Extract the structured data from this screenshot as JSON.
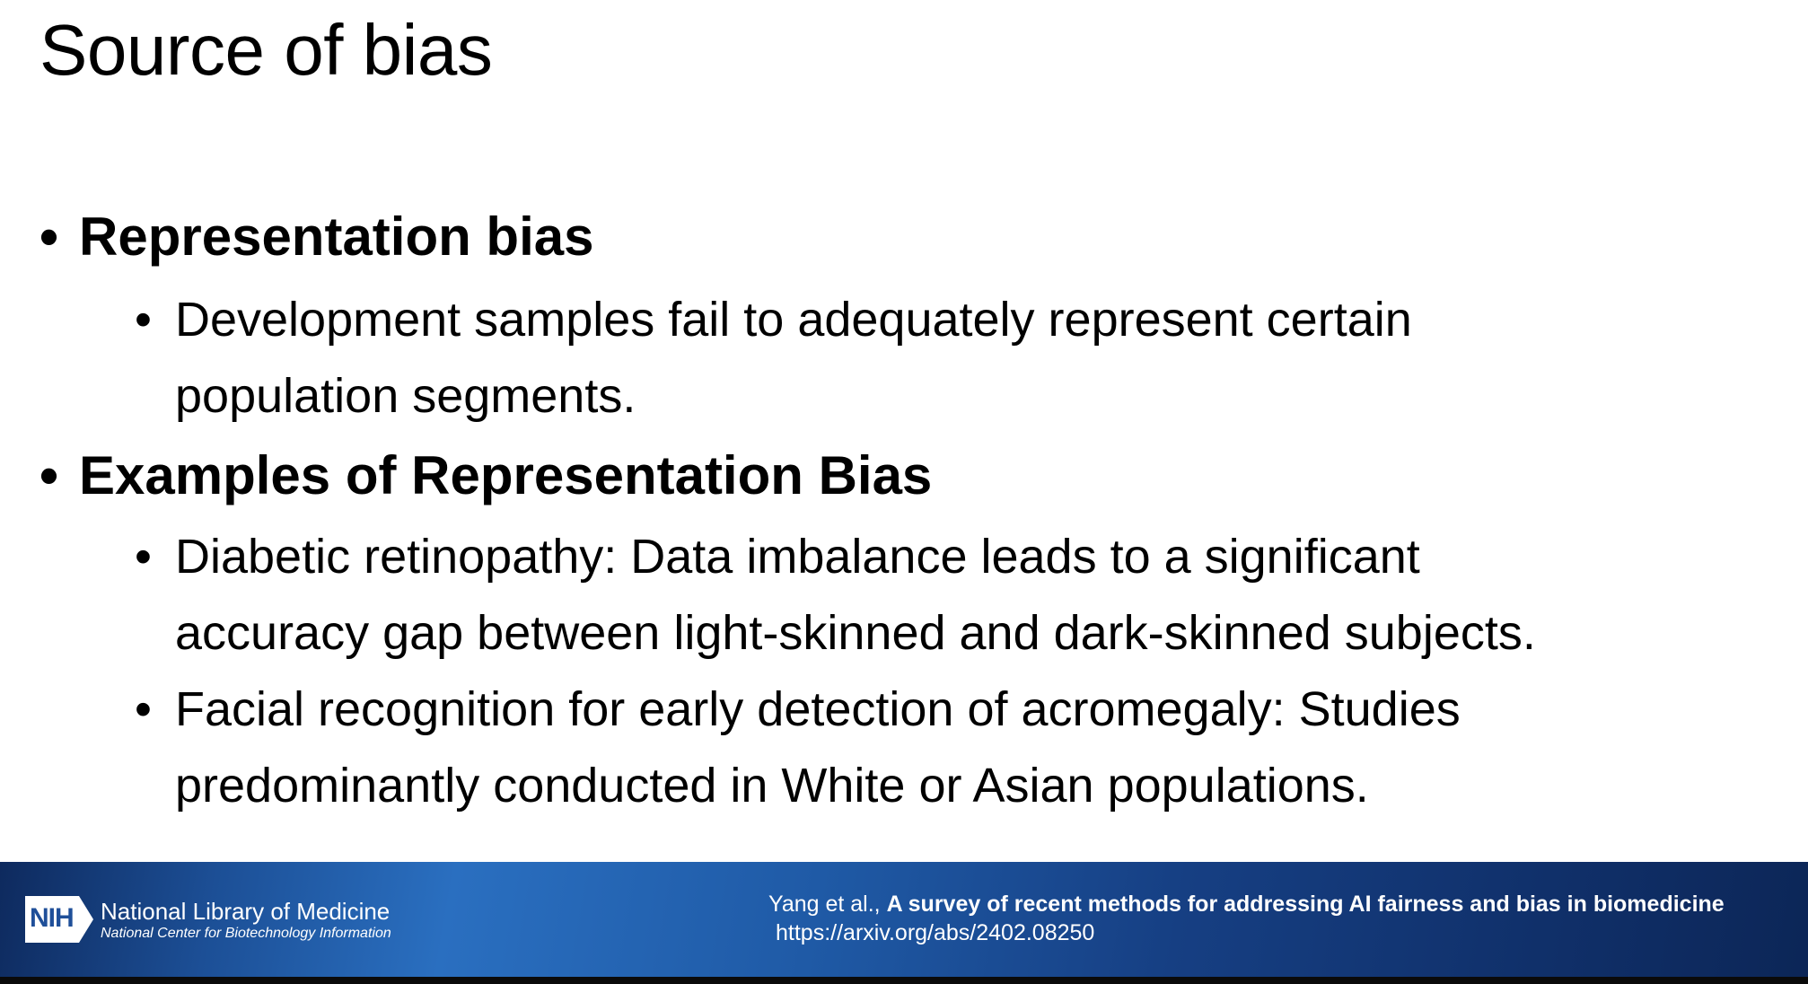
{
  "slide": {
    "title": "Source of bias",
    "sections": [
      {
        "heading": "Representation bias",
        "items": [
          {
            "lines": [
              "Development samples fail to adequately represent certain",
              "population segments."
            ]
          }
        ]
      },
      {
        "heading": "Examples of Representation Bias",
        "items": [
          {
            "lines": [
              "Diabetic retinopathy: Data imbalance leads to a significant",
              "accuracy gap between light-skinned and dark-skinned subjects."
            ]
          },
          {
            "lines": [
              "Facial recognition for early detection of acromegaly: Studies",
              "predominantly conducted in White or Asian populations."
            ]
          }
        ]
      }
    ],
    "bullet_glyph": "•"
  },
  "footer": {
    "logo": {
      "badge": "NIH",
      "name": "National Library of Medicine",
      "subtitle": "National Center for Biotechnology Information"
    },
    "citation": {
      "authors": "Yang et al., ",
      "title": "A survey of recent methods for addressing AI fairness and bias in biomedicine",
      "url": "https://arxiv.org/abs/2402.08250"
    },
    "colors": {
      "band_dark": "#0e2a5e",
      "band_light": "#2a6fc0",
      "text": "#ffffff"
    }
  }
}
